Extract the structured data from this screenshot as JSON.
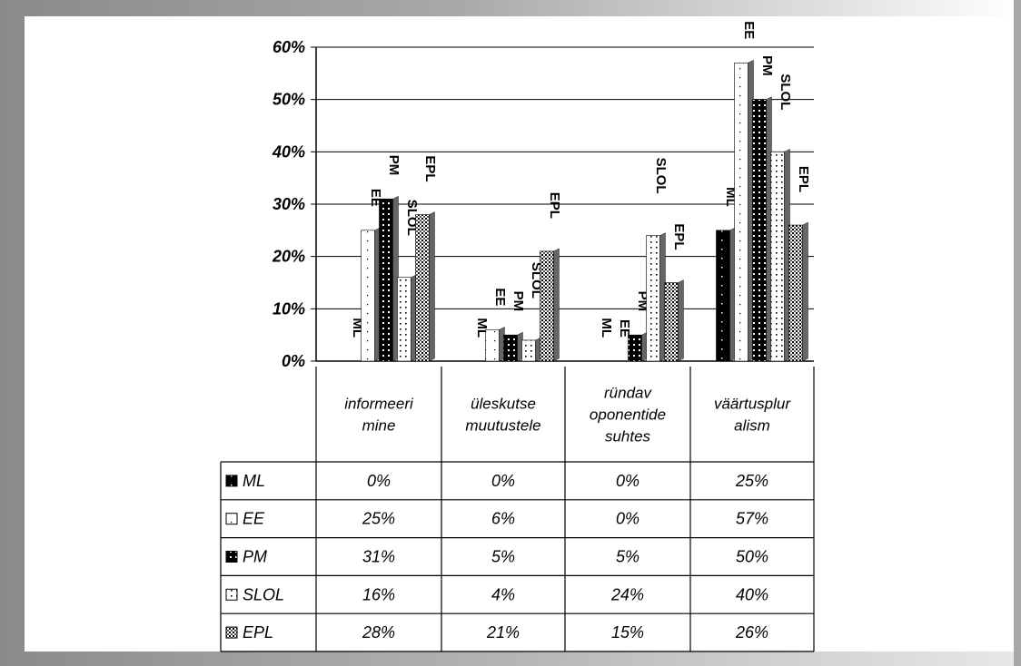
{
  "chart_data": {
    "type": "bar",
    "title": "",
    "xlabel": "",
    "ylabel": "",
    "ylim": [
      0,
      0.6
    ],
    "yticks": [
      "0%",
      "10%",
      "20%",
      "30%",
      "40%",
      "50%",
      "60%"
    ],
    "categories": [
      [
        "informeeri",
        "mine"
      ],
      [
        "üleskutse",
        "muutustele"
      ],
      [
        "ründav",
        "oponentide",
        "suhtes"
      ],
      [
        "väärtusplur",
        "alism"
      ]
    ],
    "series": [
      {
        "name": "ML",
        "pattern": "pat-ml",
        "values": [
          0,
          0,
          0,
          0.25
        ],
        "labels": [
          "0%",
          "0%",
          "0%",
          "25%"
        ]
      },
      {
        "name": "EE",
        "pattern": "pat-ee",
        "values": [
          0.25,
          0.06,
          0,
          0.57
        ],
        "labels": [
          "25%",
          "6%",
          "0%",
          "57%"
        ]
      },
      {
        "name": "PM",
        "pattern": "pat-pm",
        "values": [
          0.31,
          0.05,
          0.05,
          0.5
        ],
        "labels": [
          "31%",
          "5%",
          "5%",
          "50%"
        ]
      },
      {
        "name": "SLOL",
        "pattern": "pat-slol",
        "values": [
          0.16,
          0.04,
          0.24,
          0.4
        ],
        "labels": [
          "16%",
          "4%",
          "24%",
          "40%"
        ]
      },
      {
        "name": "EPL",
        "pattern": "pat-epl",
        "values": [
          0.28,
          0.21,
          0.15,
          0.26
        ],
        "labels": [
          "28%",
          "21%",
          "15%",
          "26%"
        ]
      }
    ],
    "grid": true,
    "legend": "data table"
  }
}
